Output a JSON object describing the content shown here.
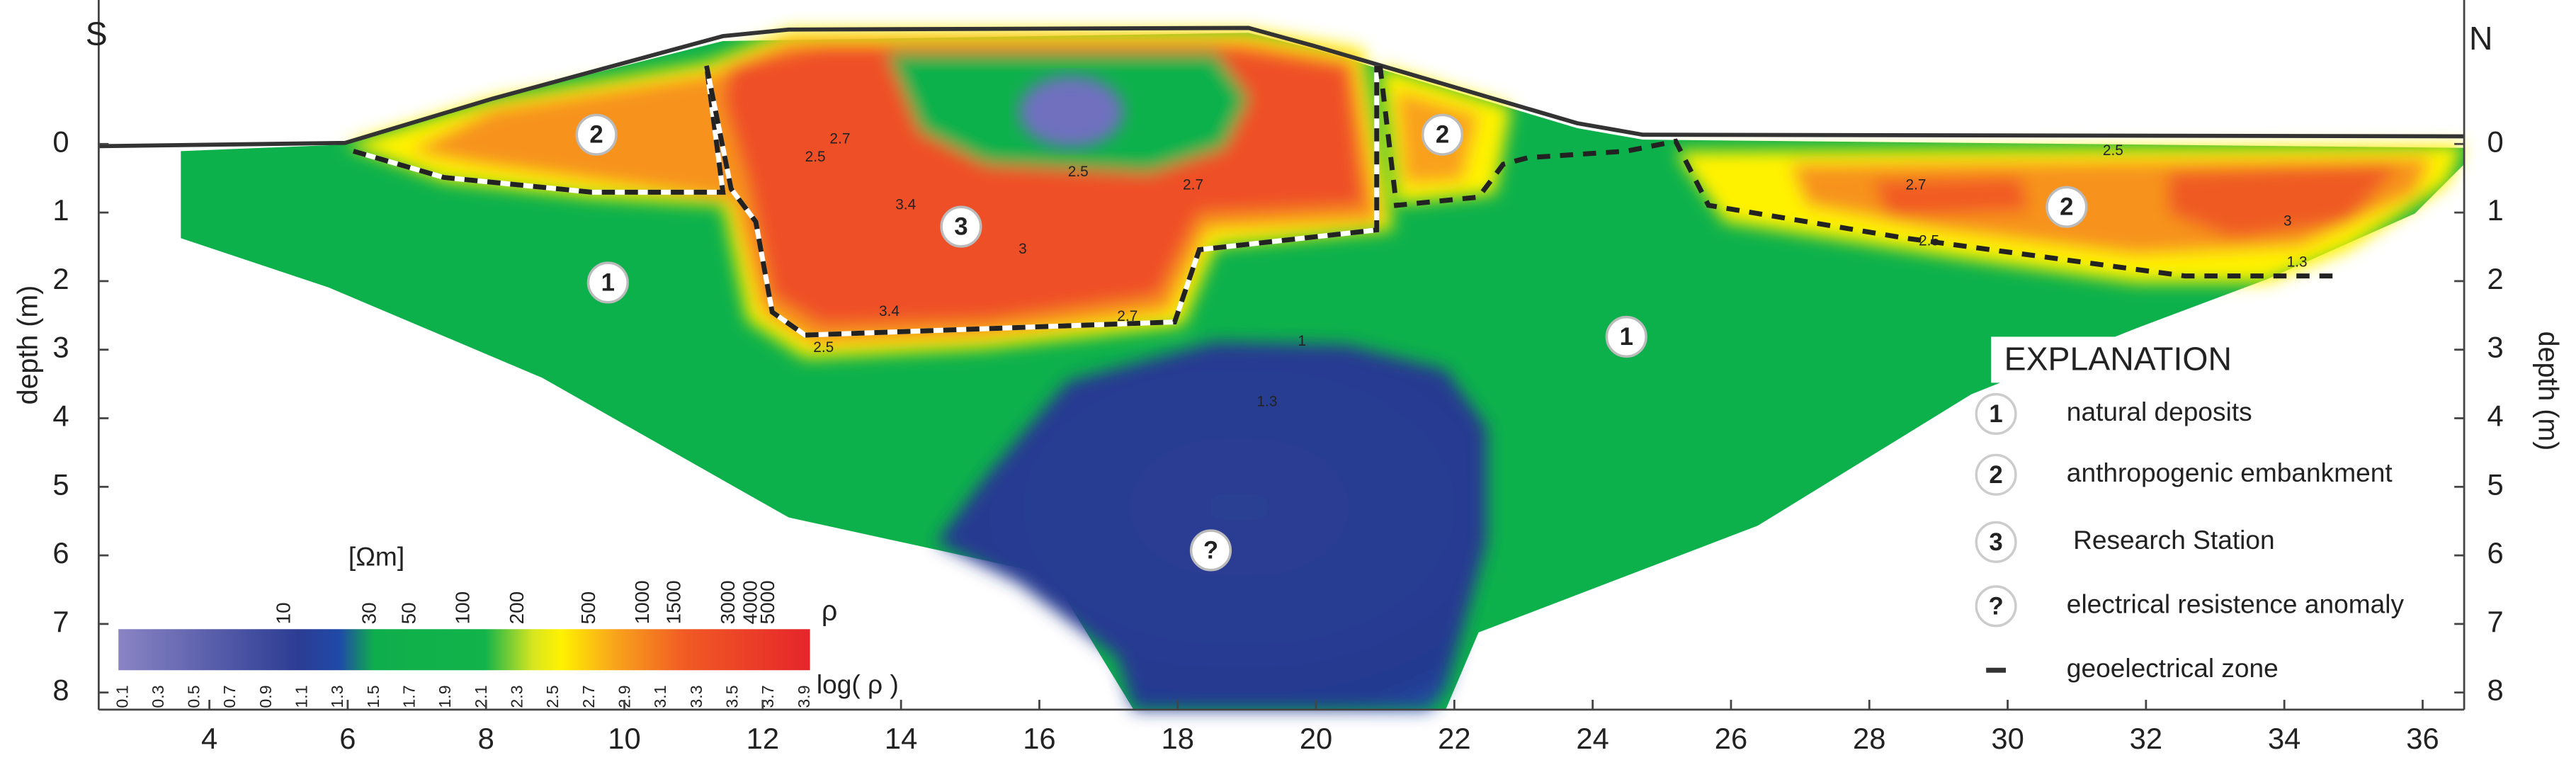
{
  "chart_data": {
    "type": "section",
    "left_label": "S",
    "right_label": "N",
    "y_label": "depth (m)",
    "y2_label": "depth (m)",
    "xlim": [
      2.4,
      36.6
    ],
    "xticks": [
      4,
      6,
      8,
      10,
      12,
      14,
      16,
      18,
      20,
      22,
      24,
      26,
      28,
      30,
      32,
      34,
      36
    ],
    "ylim": [
      8.25,
      -2.1
    ],
    "yticks": [
      0,
      1,
      2,
      3,
      4,
      5,
      6,
      7,
      8
    ],
    "y2lim": [
      8.25,
      -2.1
    ],
    "y2ticks": [
      0,
      1,
      2,
      3,
      4,
      5,
      6,
      7,
      8
    ],
    "zone_markers": [
      "2",
      "2",
      "2",
      "3",
      "1",
      "1",
      "?"
    ],
    "contour_labels": [
      2.5,
      2.7,
      3.4,
      3,
      3.4,
      2.7,
      2.5,
      2.5,
      2.7,
      2.7,
      3,
      2.5,
      2.5,
      1.3,
      1,
      1.3
    ],
    "colorbar": {
      "unit": "[Ωm]",
      "symbol": "ρ",
      "log_label": "log( ρ )",
      "ticks": [
        10,
        30,
        50,
        100,
        200,
        500,
        1000,
        1500,
        3000,
        4000,
        5000
      ],
      "log_ticks": [
        0.1,
        0.3,
        0.5,
        0.7,
        0.9,
        1.1,
        1.3,
        1.5,
        1.7,
        1.9,
        2.1,
        2.3,
        2.5,
        2.7,
        2.9,
        3.1,
        3.3,
        3.5,
        3.7,
        3.9
      ]
    },
    "legend": {
      "title": "EXPLANATION",
      "items": [
        {
          "marker": "1",
          "label": "natural deposits"
        },
        {
          "marker": "2",
          "label": "anthropogenic embankment"
        },
        {
          "marker": "3",
          "label": "Research Station"
        },
        {
          "marker": "?",
          "label": "electrical resistence anomaly"
        },
        {
          "label": "geoelectrical zone"
        }
      ]
    }
  }
}
